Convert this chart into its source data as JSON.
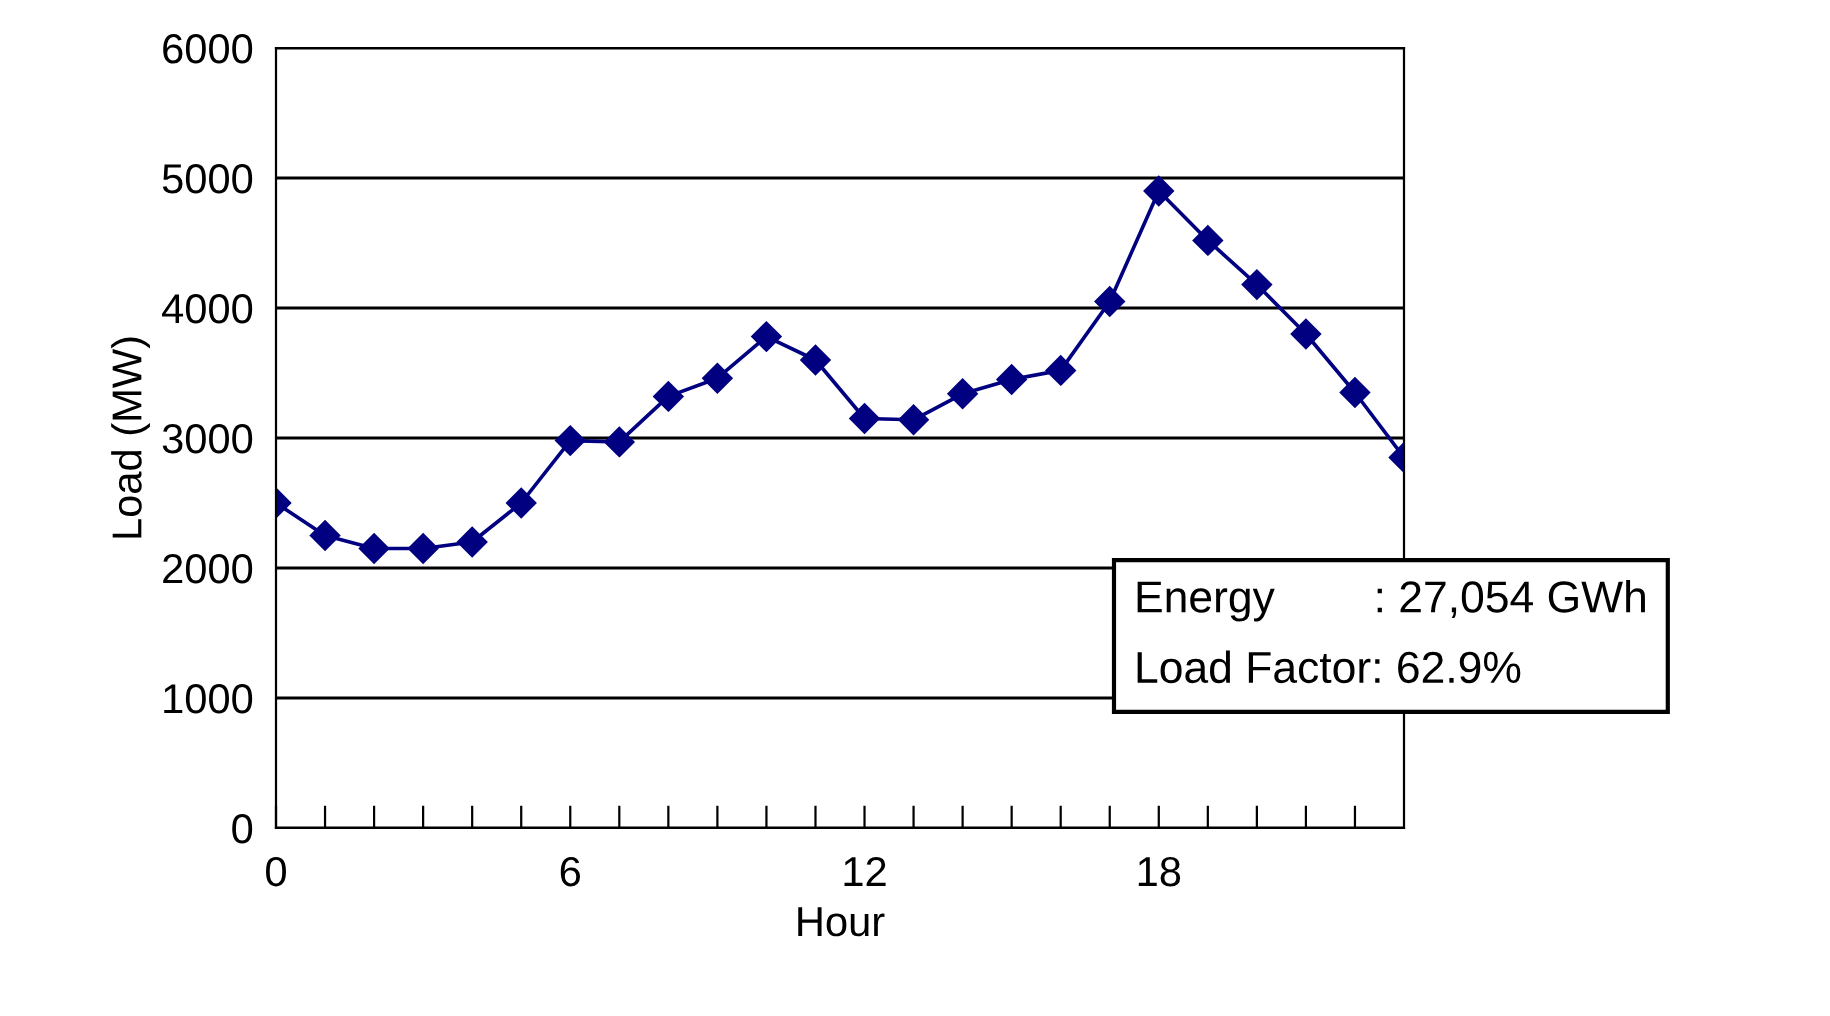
{
  "chart_data": {
    "type": "line",
    "xlabel": "Hour",
    "ylabel": "Load (MW)",
    "x": [
      0,
      1,
      2,
      3,
      4,
      5,
      6,
      7,
      8,
      9,
      10,
      11,
      12,
      13,
      14,
      15,
      16,
      17,
      18,
      19,
      20,
      21,
      22,
      23
    ],
    "series": [
      {
        "color": "#000080",
        "values": [
          2500,
          2250,
          2150,
          2150,
          2200,
          2500,
          2980,
          2970,
          3320,
          3460,
          3780,
          3600,
          3150,
          3140,
          3340,
          3450,
          3520,
          4050,
          4900,
          4520,
          4180,
          3800,
          3350,
          2850
        ]
      }
    ],
    "xlim": [
      0,
      23
    ],
    "xticks": [
      0,
      {
        "value": 1,
        "label": null
      },
      {
        "value": 2,
        "label": null
      },
      {
        "value": 3,
        "label": null
      },
      {
        "value": 4,
        "label": null
      },
      {
        "value": 5,
        "label": null
      },
      6,
      {
        "value": 7,
        "label": null
      },
      {
        "value": 8,
        "label": null
      },
      {
        "value": 9,
        "label": null
      },
      {
        "value": 10,
        "label": null
      },
      {
        "value": 11,
        "label": null
      },
      12,
      {
        "value": 13,
        "label": null
      },
      {
        "value": 14,
        "label": null
      },
      {
        "value": 15,
        "label": null
      },
      {
        "value": 16,
        "label": null
      },
      {
        "value": 17,
        "label": null
      },
      18,
      {
        "value": 19,
        "label": null
      },
      {
        "value": 20,
        "label": null
      },
      {
        "value": 21,
        "label": null
      },
      {
        "value": 22,
        "label": null
      }
    ],
    "ylim": [
      0,
      6000
    ],
    "yticks": [
      0,
      1000,
      2000,
      3000,
      4000,
      5000,
      6000
    ],
    "grid": "y",
    "marker": "diamond",
    "line_style": "solid",
    "legend": false,
    "annotations": [
      "Energy        : 27,054 GWh\nLoad Factor: 62.9%"
    ]
  }
}
